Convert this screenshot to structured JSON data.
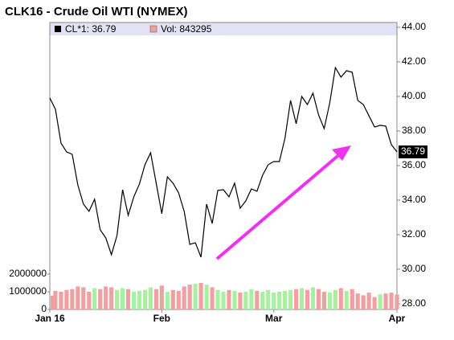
{
  "chart_data": {
    "type": "line",
    "title": "CLK16 - Crude Oil WTI (NYMEX)",
    "x": [
      0,
      1,
      2,
      3,
      4,
      5,
      6,
      7,
      8,
      9,
      10,
      11,
      12,
      13,
      14,
      15,
      16,
      17,
      18,
      19,
      20,
      21,
      22,
      23,
      24,
      25,
      26,
      27,
      28,
      29,
      30,
      31,
      32,
      33,
      34,
      35,
      36,
      37,
      38,
      39,
      40,
      41,
      42,
      43,
      44,
      45,
      46,
      47,
      48,
      49,
      50,
      51,
      52,
      53,
      54,
      55,
      56,
      57,
      58,
      59,
      60,
      61,
      62
    ],
    "xlim": [
      0,
      62
    ],
    "xticks": [
      {
        "value": 0,
        "label": "Jan 16"
      },
      {
        "value": 20,
        "label": "Feb"
      },
      {
        "value": 40,
        "label": "Mar"
      },
      {
        "value": 62,
        "label": "Apr"
      }
    ],
    "series": [
      {
        "name": "CL*1: 36.79",
        "color": "#000000",
        "axis": "y2",
        "values": [
          39.91,
          39.26,
          37.3,
          36.79,
          36.65,
          34.88,
          33.77,
          33.35,
          34.05,
          32.28,
          31.81,
          30.84,
          31.95,
          34.6,
          33.12,
          34.19,
          34.93,
          36.05,
          36.74,
          34.98,
          33.21,
          35.35,
          34.98,
          34.42,
          33.35,
          31.44,
          31.53,
          30.7,
          33.77,
          32.65,
          34.56,
          34.6,
          34.19,
          34.98,
          33.53,
          33.95,
          34.65,
          34.51,
          35.44,
          36.05,
          36.23,
          36.23,
          37.58,
          39.77,
          38.42,
          40.0,
          39.53,
          40.19,
          38.93,
          38.14,
          39.63,
          41.67,
          41.12,
          41.49,
          41.4,
          39.77,
          39.53,
          38.88,
          38.23,
          38.33,
          38.28,
          37.21,
          36.79
        ]
      },
      {
        "name": "Vol: 843295",
        "color": "#f0a0a0",
        "up_color": "#a8f0a0",
        "values": [
          780000,
          1050000,
          1000000,
          1100000,
          1150000,
          1300000,
          1250000,
          1000000,
          1200000,
          1150000,
          1300000,
          1250000,
          1100000,
          1200000,
          1150000,
          1000000,
          1050000,
          1100000,
          1250000,
          1150000,
          1350000,
          1000000,
          1100000,
          1050000,
          1300000,
          1400000,
          1450000,
          1500000,
          1400000,
          1250000,
          1100000,
          1000000,
          1100000,
          1050000,
          950000,
          1000000,
          1150000,
          1050000,
          1000000,
          1100000,
          950000,
          1000000,
          1050000,
          1100000,
          1150000,
          1200000,
          1100000,
          1250000,
          1150000,
          1000000,
          950000,
          1100000,
          1200000,
          1050000,
          1150000,
          900000,
          800000,
          950000,
          700000,
          850000,
          900000,
          950000,
          843295
        ]
      }
    ],
    "ylim": [
      0,
      16200000
    ],
    "yticks": [
      0,
      1000000,
      2000000
    ],
    "y2lim": [
      27.67,
      44.28
    ],
    "y2ticks": [
      {
        "value": 28,
        "label": "28.00"
      },
      {
        "value": 30,
        "label": "30.00"
      },
      {
        "value": 32,
        "label": "32.00"
      },
      {
        "value": 34,
        "label": "34.00"
      },
      {
        "value": 36,
        "label": "36.00"
      },
      {
        "value": 38,
        "label": "38.00"
      },
      {
        "value": 40,
        "label": "40.00"
      },
      {
        "value": 42,
        "label": "42.00"
      },
      {
        "value": 44,
        "label": "44.00"
      }
    ]
  }
}
